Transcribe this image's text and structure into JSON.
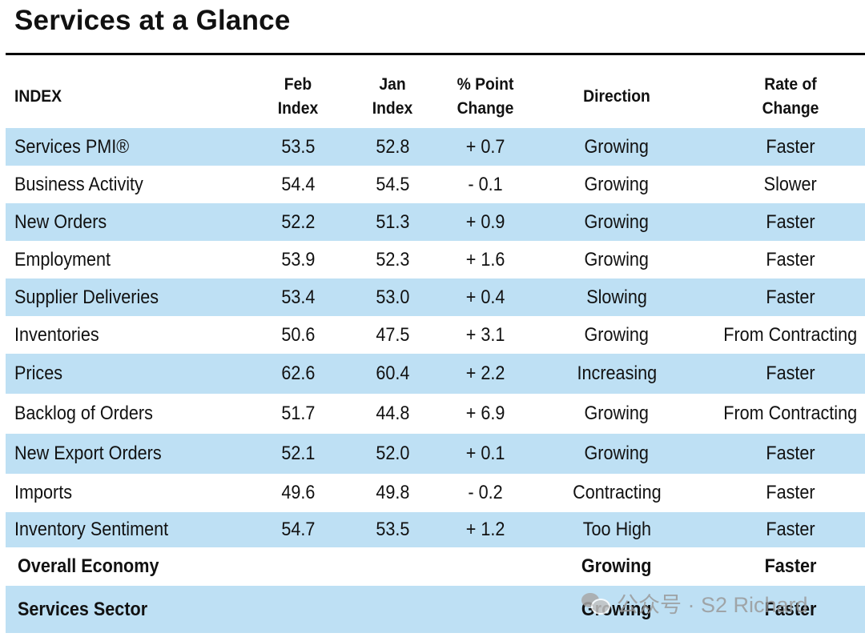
{
  "title": "Services at a Glance",
  "columns": {
    "index": "INDEX",
    "feb": "Feb\nIndex",
    "jan": "Jan\nIndex",
    "change": "% Point\nChange",
    "direction": "Direction",
    "rate": "Rate of\nChange"
  },
  "rows": [
    {
      "name": "Services PMI®",
      "feb": "53.5",
      "jan": "52.8",
      "change": "+ 0.7",
      "direction": "Growing",
      "rate": "Faster"
    },
    {
      "name": "Business Activity",
      "feb": "54.4",
      "jan": "54.5",
      "change": "- 0.1",
      "direction": "Growing",
      "rate": "Slower"
    },
    {
      "name": "New Orders",
      "feb": "52.2",
      "jan": "51.3",
      "change": "+ 0.9",
      "direction": "Growing",
      "rate": "Faster"
    },
    {
      "name": "Employment",
      "feb": "53.9",
      "jan": "52.3",
      "change": "+ 1.6",
      "direction": "Growing",
      "rate": "Faster"
    },
    {
      "name": "Supplier Deliveries",
      "feb": "53.4",
      "jan": "53.0",
      "change": "+ 0.4",
      "direction": "Slowing",
      "rate": "Faster"
    },
    {
      "name": "Inventories",
      "feb": "50.6",
      "jan": "47.5",
      "change": "+ 3.1",
      "direction": "Growing",
      "rate": "From Contracting"
    },
    {
      "name": "Prices",
      "feb": "62.6",
      "jan": "60.4",
      "change": "+ 2.2",
      "direction": "Increasing",
      "rate": "Faster"
    },
    {
      "name": "Backlog of Orders",
      "feb": "51.7",
      "jan": "44.8",
      "change": "+ 6.9",
      "direction": "Growing",
      "rate": "From Contracting"
    },
    {
      "name": "New Export Orders",
      "feb": "52.1",
      "jan": "52.0",
      "change": "+ 0.1",
      "direction": "Growing",
      "rate": "Faster"
    },
    {
      "name": "Imports",
      "feb": "49.6",
      "jan": "49.8",
      "change": "- 0.2",
      "direction": "Contracting",
      "rate": "Faster"
    },
    {
      "name": "Inventory Sentiment",
      "feb": "54.7",
      "jan": "53.5",
      "change": "+ 1.2",
      "direction": "Too High",
      "rate": "Faster"
    }
  ],
  "summary": [
    {
      "name": "Overall Economy",
      "direction": "Growing",
      "rate": "Faster"
    },
    {
      "name": "Services Sector",
      "direction": "Growing",
      "rate": "Faster"
    }
  ],
  "watermark": {
    "text": "公众号 · S2 Richard",
    "icon": "wechat-icon"
  },
  "colors": {
    "shaded_row": "#bee0f4",
    "rule": "#000000"
  }
}
